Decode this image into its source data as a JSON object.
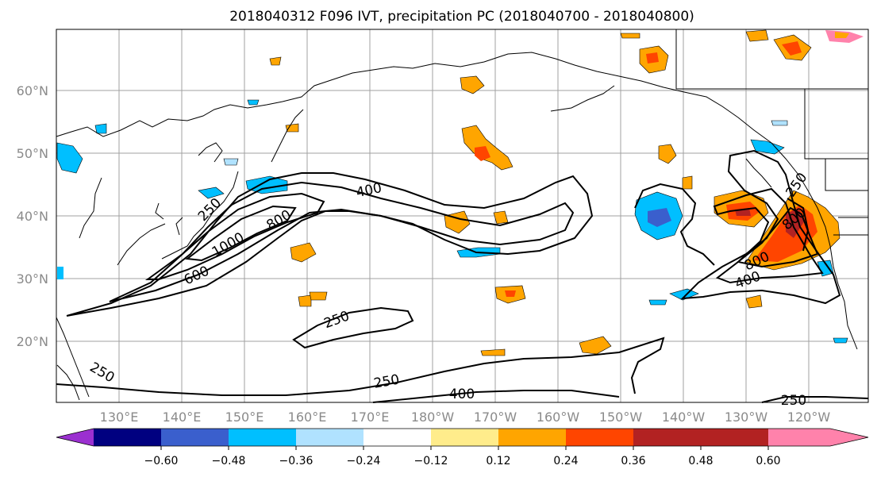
{
  "title": "2018040312 F096 IVT, precipitation PC (2018040700 - 2018040800)",
  "map": {
    "lon_labels": [
      "130°E",
      "140°E",
      "150°E",
      "160°E",
      "170°E",
      "180°W",
      "170°W",
      "160°W",
      "150°W",
      "140°W",
      "130°W",
      "120°W"
    ],
    "lat_labels": [
      "60°N",
      "50°N",
      "40°N",
      "30°N",
      "20°N"
    ],
    "ivt_contour_labels": [
      "400",
      "250",
      "800",
      "1000",
      "600",
      "250",
      "250",
      "400",
      "250",
      "250",
      "800",
      "400",
      "800",
      "250"
    ]
  },
  "colorbar": {
    "tick_labels": [
      "−0.60",
      "−0.48",
      "−0.36",
      "−0.24",
      "−0.12",
      "0.12",
      "0.24",
      "0.36",
      "0.48",
      "0.60"
    ],
    "colors": [
      "#9b30d0",
      "#000080",
      "#3a5fcd",
      "#00bfff",
      "#b0e2ff",
      "#ffffff",
      "#ffec8b",
      "#ffa500",
      "#ff4500",
      "#b22222",
      "#ff82ab"
    ],
    "extend": "both"
  }
}
